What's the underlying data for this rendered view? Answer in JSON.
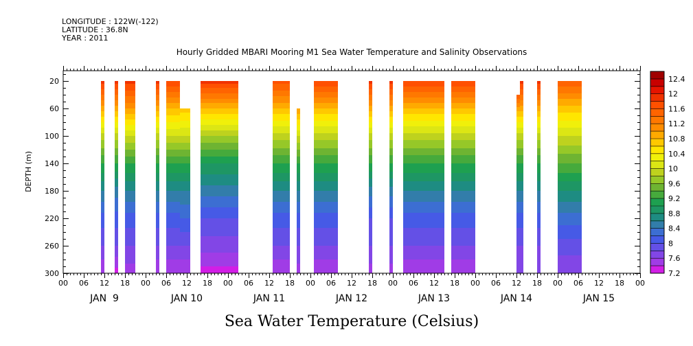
{
  "header": {
    "lines": [
      "LONGITUDE : 122W(-122)",
      "LATITUDE : 36.8N",
      "YEAR : 2011"
    ],
    "title": "Hourly Gridded MBARI Mooring M1 Sea Water Temperature and Salinity Observations"
  },
  "chart_data": {
    "type": "heatmap",
    "title": "Hourly Gridded MBARI Mooring M1 Sea Water Temperature and Salinity Observations",
    "xlabel": "Sea Water Temperature (Celsius)",
    "ylabel": "DEPTH (m)",
    "x_unit": "hours since JAN 9 00:00",
    "xlim": [
      0,
      168
    ],
    "ylim": [
      300,
      5
    ],
    "y_reversed": true,
    "x_hour_ticks": [
      "00",
      "06",
      "12",
      "18",
      "00",
      "06",
      "12",
      "18",
      "00",
      "06",
      "12",
      "18",
      "00",
      "06",
      "12",
      "18",
      "00",
      "06",
      "12",
      "18",
      "00",
      "06",
      "12",
      "18",
      "00",
      "06",
      "12",
      "18",
      "00"
    ],
    "x_day_labels": [
      "JAN  9",
      "JAN 10",
      "JAN 11",
      "JAN 12",
      "JAN 13",
      "JAN 14",
      "JAN 15"
    ],
    "y_ticks": [
      20,
      60,
      100,
      140,
      180,
      220,
      260,
      300
    ],
    "colorbar": {
      "levels": [
        7.2,
        7.4,
        7.6,
        7.8,
        8,
        8.2,
        8.4,
        8.6,
        8.8,
        9,
        9.2,
        9.4,
        9.6,
        9.8,
        10,
        10.2,
        10.4,
        10.6,
        10.8,
        11,
        11.2,
        11.4,
        11.6,
        11.8,
        12,
        12.2,
        12.4
      ],
      "labels": [
        "7.2",
        "7.6",
        "8",
        "8.4",
        "8.8",
        "9.2",
        "9.6",
        "10",
        "10.4",
        "10.8",
        "11.2",
        "11.6",
        "12",
        "12.4"
      ],
      "colors": [
        "#d21ee6",
        "#a03ce6",
        "#8246e6",
        "#6450e6",
        "#465ae6",
        "#3c6ed2",
        "#327daa",
        "#1e8c82",
        "#1e9664",
        "#1ea050",
        "#46aa3c",
        "#6eb432",
        "#96c828",
        "#bed21e",
        "#dce614",
        "#f0f00a",
        "#ffe600",
        "#ffc800",
        "#ffaa00",
        "#ff8c00",
        "#ff7800",
        "#ff6400",
        "#ff5000",
        "#f03200",
        "#e61400",
        "#c80000",
        "#a00000"
      ]
    },
    "segments": [
      {
        "start": 11,
        "end": 12,
        "top": 20,
        "temp_profile": [
          [
            20,
            11.9
          ],
          [
            60,
            10.9
          ],
          [
            100,
            9.9
          ],
          [
            140,
            9.2
          ],
          [
            180,
            8.6
          ],
          [
            220,
            8.1
          ],
          [
            260,
            7.8
          ],
          [
            300,
            7.4
          ]
        ]
      },
      {
        "start": 15,
        "end": 16,
        "top": 20,
        "temp_profile": [
          [
            20,
            11.9
          ],
          [
            60,
            10.9
          ],
          [
            100,
            9.9
          ],
          [
            140,
            9.2
          ],
          [
            180,
            8.5
          ],
          [
            220,
            8.1
          ],
          [
            260,
            7.8
          ],
          [
            300,
            7.3
          ]
        ]
      },
      {
        "start": 18,
        "end": 21,
        "top": 20,
        "temp_profile": [
          [
            20,
            11.9
          ],
          [
            60,
            11.0
          ],
          [
            100,
            10.0
          ],
          [
            140,
            9.2
          ],
          [
            180,
            8.6
          ],
          [
            220,
            8.1
          ],
          [
            260,
            7.8
          ],
          [
            300,
            7.5
          ]
        ]
      },
      {
        "start": 27,
        "end": 28,
        "top": 20,
        "temp_profile": [
          [
            20,
            11.9
          ],
          [
            60,
            10.9
          ],
          [
            100,
            9.9
          ],
          [
            140,
            9.2
          ],
          [
            180,
            8.6
          ],
          [
            220,
            8.1
          ],
          [
            260,
            7.8
          ],
          [
            300,
            7.4
          ]
        ]
      },
      {
        "start": 30,
        "end": 34,
        "top": 20,
        "temp_profile": [
          [
            20,
            11.8
          ],
          [
            60,
            10.8
          ],
          [
            100,
            10.0
          ],
          [
            140,
            9.2
          ],
          [
            180,
            8.6
          ],
          [
            220,
            8.1
          ],
          [
            260,
            7.8
          ],
          [
            300,
            7.4
          ]
        ]
      },
      {
        "start": 34,
        "end": 37,
        "top": 60,
        "temp_profile": [
          [
            60,
            10.7
          ],
          [
            100,
            10.0
          ],
          [
            140,
            9.2
          ],
          [
            180,
            8.6
          ],
          [
            220,
            8.2
          ],
          [
            260,
            7.8
          ],
          [
            300,
            7.4
          ]
        ]
      },
      {
        "start": 40,
        "end": 51,
        "top": 20,
        "temp_profile": [
          [
            20,
            11.9
          ],
          [
            60,
            10.8
          ],
          [
            100,
            9.8
          ],
          [
            140,
            9.0
          ],
          [
            180,
            8.5
          ],
          [
            220,
            8.0
          ],
          [
            260,
            7.7
          ],
          [
            300,
            7.3
          ]
        ]
      },
      {
        "start": 61,
        "end": 66,
        "top": 20,
        "temp_profile": [
          [
            20,
            11.7
          ],
          [
            60,
            10.8
          ],
          [
            100,
            9.9
          ],
          [
            140,
            9.2
          ],
          [
            180,
            8.6
          ],
          [
            220,
            8.1
          ],
          [
            260,
            7.8
          ],
          [
            300,
            7.4
          ]
        ]
      },
      {
        "start": 68,
        "end": 69,
        "top": 60,
        "temp_profile": [
          [
            60,
            11.0
          ],
          [
            100,
            10.0
          ],
          [
            140,
            9.2
          ],
          [
            180,
            8.6
          ],
          [
            220,
            8.1
          ],
          [
            260,
            7.8
          ],
          [
            300,
            7.5
          ]
        ]
      },
      {
        "start": 73,
        "end": 80,
        "top": 20,
        "temp_profile": [
          [
            20,
            11.8
          ],
          [
            60,
            10.8
          ],
          [
            100,
            9.9
          ],
          [
            140,
            9.2
          ],
          [
            180,
            8.6
          ],
          [
            220,
            8.1
          ],
          [
            260,
            7.8
          ],
          [
            300,
            7.4
          ]
        ]
      },
      {
        "start": 89,
        "end": 90,
        "top": 20,
        "temp_profile": [
          [
            20,
            11.9
          ],
          [
            60,
            10.9
          ],
          [
            100,
            9.9
          ],
          [
            140,
            9.2
          ],
          [
            180,
            8.5
          ],
          [
            220,
            8.0
          ],
          [
            260,
            7.8
          ],
          [
            300,
            7.5
          ]
        ]
      },
      {
        "start": 95,
        "end": 96,
        "top": 20,
        "temp_profile": [
          [
            20,
            11.9
          ],
          [
            60,
            10.9
          ],
          [
            100,
            9.9
          ],
          [
            140,
            9.2
          ],
          [
            180,
            8.5
          ],
          [
            220,
            8.0
          ],
          [
            260,
            7.8
          ],
          [
            300,
            7.5
          ]
        ]
      },
      {
        "start": 99,
        "end": 111,
        "top": 20,
        "temp_profile": [
          [
            20,
            11.8
          ],
          [
            60,
            10.8
          ],
          [
            100,
            9.9
          ],
          [
            140,
            9.2
          ],
          [
            180,
            8.6
          ],
          [
            220,
            8.1
          ],
          [
            260,
            7.8
          ],
          [
            300,
            7.4
          ]
        ]
      },
      {
        "start": 113,
        "end": 120,
        "top": 20,
        "temp_profile": [
          [
            20,
            11.8
          ],
          [
            60,
            10.8
          ],
          [
            100,
            9.9
          ],
          [
            140,
            9.2
          ],
          [
            180,
            8.6
          ],
          [
            220,
            8.1
          ],
          [
            260,
            7.8
          ],
          [
            300,
            7.4
          ]
        ]
      },
      {
        "start": 132,
        "end": 133,
        "top": 40,
        "temp_profile": [
          [
            40,
            11.6
          ],
          [
            60,
            10.9
          ],
          [
            100,
            9.9
          ],
          [
            140,
            9.2
          ],
          [
            180,
            8.6
          ],
          [
            220,
            8.1
          ],
          [
            260,
            7.8
          ],
          [
            300,
            7.6
          ]
        ]
      },
      {
        "start": 133,
        "end": 134,
        "top": 20,
        "temp_profile": [
          [
            20,
            11.9
          ],
          [
            60,
            10.9
          ],
          [
            100,
            9.9
          ],
          [
            140,
            9.2
          ],
          [
            180,
            8.6
          ],
          [
            220,
            8.1
          ],
          [
            260,
            7.8
          ],
          [
            300,
            7.6
          ]
        ]
      },
      {
        "start": 138,
        "end": 139,
        "top": 20,
        "temp_profile": [
          [
            20,
            11.9
          ],
          [
            60,
            10.9
          ],
          [
            100,
            9.9
          ],
          [
            140,
            9.2
          ],
          [
            180,
            8.6
          ],
          [
            220,
            8.1
          ],
          [
            260,
            7.8
          ],
          [
            300,
            7.6
          ]
        ]
      },
      {
        "start": 144,
        "end": 151,
        "top": 20,
        "temp_profile": [
          [
            20,
            11.6
          ],
          [
            60,
            10.7
          ],
          [
            100,
            10.0
          ],
          [
            140,
            9.4
          ],
          [
            180,
            8.8
          ],
          [
            220,
            8.3
          ],
          [
            260,
            7.9
          ],
          [
            300,
            7.6
          ]
        ]
      }
    ]
  }
}
